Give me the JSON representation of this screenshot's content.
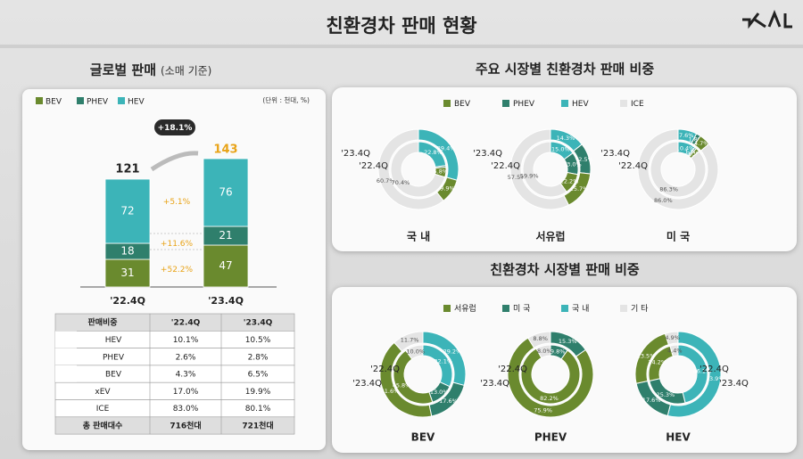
{
  "title": "친환경차 판매 현황",
  "chart_data": [
    {
      "type": "bar",
      "stacked": true,
      "title": "글로벌 판매",
      "subtitle": "(소매 기준)",
      "unit": "(단위 : 천대, %)",
      "categories": [
        "'22.4Q",
        "'23.4Q"
      ],
      "series": [
        {
          "name": "BEV",
          "color": "#6a8a2e",
          "values": [
            31,
            47
          ]
        },
        {
          "name": "PHEV",
          "color": "#2f7f6c",
          "values": [
            18,
            21
          ]
        },
        {
          "name": "HEV",
          "color": "#3cb4b8",
          "values": [
            72,
            76
          ]
        }
      ],
      "ylim": [
        0,
        160
      ],
      "totals": [
        121,
        143
      ],
      "totals_colors": [
        "#222222",
        "#e8a317"
      ],
      "growth": "+18.1%",
      "series_growth": [
        "+52.2%",
        "+11.6%",
        "+5.1%"
      ]
    },
    {
      "type": "donut",
      "title": "주요 시장별 친환경차 판매 비중",
      "legend": [
        {
          "name": "BEV",
          "color": "#6a8a2e"
        },
        {
          "name": "PHEV",
          "color": "#2f7f6c"
        },
        {
          "name": "HEV",
          "color": "#3cb4b8"
        },
        {
          "name": "ICE",
          "color": "#e4e4e4"
        }
      ],
      "charts": [
        {
          "label": "국 내",
          "series": [
            {
              "name": "'23.4Q",
              "values": [
                9.9,
                0,
                29.4,
                60.7
              ],
              "value_labels": [
                "9.9%",
                null,
                "29.4%",
                "60.7%"
              ]
            },
            {
              "name": "'22.4Q",
              "values": [
                5.8,
                1.0,
                22.8,
                70.4
              ],
              "value_labels": [
                "5.8%",
                null,
                "22.8%",
                "70.4%"
              ]
            }
          ]
        },
        {
          "label": "서유럽",
          "series": [
            {
              "name": "'23.4Q",
              "values": [
                15.7,
                12.5,
                14.3,
                57.5
              ],
              "value_labels": [
                "15.7%",
                "12.5%",
                "14.3%",
                "57.5%"
              ]
            },
            {
              "name": "'22.4Q",
              "values": [
                12.2,
                13.0,
                15.0,
                59.9
              ],
              "value_labels": [
                "12.2%",
                "13.0%",
                "15.0%",
                "59.9%"
              ]
            }
          ]
        },
        {
          "label": "미 국",
          "series": [
            {
              "name": "'23.4Q",
              "values": [
                4.7,
                1.8,
                7.6,
                86.0
              ],
              "value_labels": [
                "4.7%",
                "1.8%",
                "7.6%",
                "86.0%"
              ]
            },
            {
              "name": "'22.4Q",
              "values": [
                2.3,
                1.0,
                10.4,
                86.3
              ],
              "value_labels": [
                "2.3%",
                "1.0%",
                "10.4%",
                "86.3%"
              ]
            }
          ]
        }
      ]
    },
    {
      "type": "donut",
      "title": "친환경차 시장별 판매 비중",
      "legend": [
        {
          "name": "서유럽",
          "color": "#6a8a2e"
        },
        {
          "name": "미 국",
          "color": "#2f7f6c"
        },
        {
          "name": "국 내",
          "color": "#3cb4b8"
        },
        {
          "name": "기 타",
          "color": "#e4e4e4"
        }
      ],
      "charts": [
        {
          "label": "BEV",
          "series": [
            {
              "name": "'23.4Q",
              "values": [
                41.6,
                17.6,
                29.2,
                11.7
              ],
              "value_labels": [
                "41.6%",
                "17.6%",
                "29.2%",
                "11.7%"
              ]
            },
            {
              "name": "'22.4Q",
              "values": [
                45.8,
                13.0,
                32.1,
                10.0
              ],
              "value_labels": [
                "45.8%",
                "13.0%",
                "32.1%",
                "10.0%"
              ]
            }
          ]
        },
        {
          "label": "PHEV",
          "series": [
            {
              "name": "'23.4Q",
              "values": [
                75.9,
                15.3,
                0,
                8.8
              ],
              "value_labels": [
                "75.9%",
                "15.3%",
                null,
                "8.8%"
              ]
            },
            {
              "name": "'22.4Q",
              "values": [
                82.2,
                9.8,
                0,
                8.0
              ],
              "value_labels": [
                "82.2%",
                "9.8%",
                null,
                "8.0%"
              ]
            }
          ]
        },
        {
          "label": "HEV",
          "series": [
            {
              "name": "'23.4Q",
              "values": [
                23.5,
                17.6,
                53.9,
                4.9
              ],
              "value_labels": [
                "23.5%",
                "17.6%",
                "53.9%",
                "4.9%"
              ]
            },
            {
              "name": "'22.4Q",
              "values": [
                24.2,
                25.3,
                46.1,
                4.4
              ],
              "value_labels": [
                "24.2%",
                "25.3%",
                "46.1%",
                "4.4%"
              ]
            }
          ]
        }
      ]
    }
  ],
  "table": {
    "header": [
      "판매비중",
      "'22.4Q",
      "'23.4Q"
    ],
    "rows": [
      [
        "HEV",
        "10.1%",
        "10.5%"
      ],
      [
        "PHEV",
        "2.6%",
        "2.8%"
      ],
      [
        "BEV",
        "4.3%",
        "6.5%"
      ],
      [
        "xEV",
        "17.0%",
        "19.9%"
      ],
      [
        "ICE",
        "83.0%",
        "80.1%"
      ],
      [
        "총 판매대수",
        "716천대",
        "721천대"
      ]
    ]
  }
}
